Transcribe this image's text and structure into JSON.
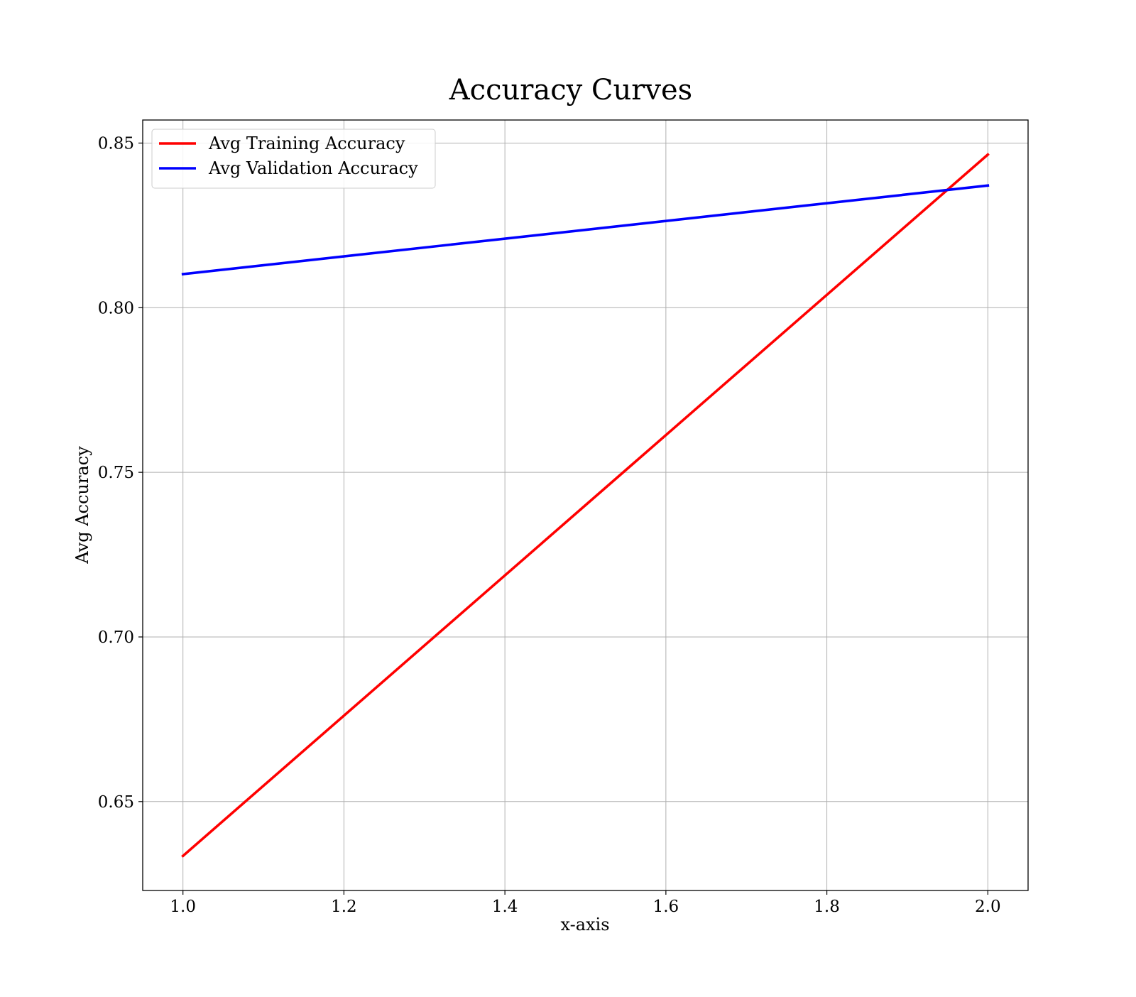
{
  "chart_data": {
    "type": "line",
    "title": "Accuracy Curves",
    "xlabel": "x-axis",
    "ylabel": "Avg Accuracy",
    "xlim": [
      0.95,
      2.05
    ],
    "ylim": [
      0.623,
      0.857
    ],
    "x_ticks": [
      1.0,
      1.2,
      1.4,
      1.6,
      1.8,
      2.0
    ],
    "x_tick_labels": [
      "1.0",
      "1.2",
      "1.4",
      "1.6",
      "1.8",
      "2.0"
    ],
    "y_ticks": [
      0.65,
      0.7,
      0.75,
      0.8,
      0.85
    ],
    "y_tick_labels": [
      "0.65",
      "0.70",
      "0.75",
      "0.80",
      "0.85"
    ],
    "grid": true,
    "legend_position": "top-left",
    "series": [
      {
        "name": "Avg Training Accuracy",
        "color": "#ff0000",
        "x": [
          1.0,
          2.0
        ],
        "y": [
          0.6335,
          0.8465
        ]
      },
      {
        "name": "Avg Validation Accuracy",
        "color": "#0000ff",
        "x": [
          1.0,
          2.0
        ],
        "y": [
          0.8102,
          0.8371
        ]
      }
    ]
  }
}
